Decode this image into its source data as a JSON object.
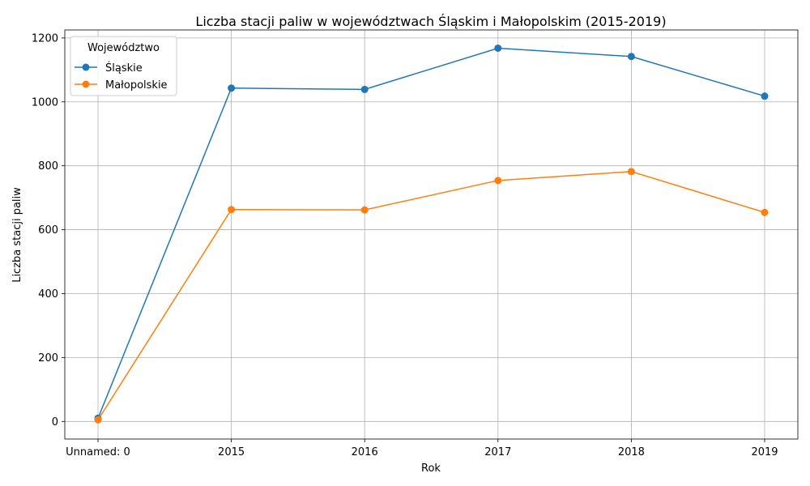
{
  "chart_data": {
    "type": "line",
    "title": "Liczba stacji paliw w województwach Śląskim i Małopolskim (2015-2019)",
    "xlabel": "Rok",
    "ylabel": "Liczba stacji paliw",
    "categories": [
      "Unnamed: 0",
      "2015",
      "2016",
      "2017",
      "2018",
      "2019"
    ],
    "ylim": [
      -55,
      1225
    ],
    "yticks": [
      0,
      200,
      400,
      600,
      800,
      1000,
      1200
    ],
    "grid": true,
    "legend": {
      "title": "Województwo",
      "position": "top-left"
    },
    "series": [
      {
        "name": "Śląskie",
        "color": "#1f77b4",
        "values": [
          10,
          1043,
          1039,
          1168,
          1142,
          1018
        ]
      },
      {
        "name": "Małopolskie",
        "color": "#ff7f0e",
        "values": [
          5,
          663,
          662,
          754,
          782,
          654
        ]
      }
    ]
  }
}
